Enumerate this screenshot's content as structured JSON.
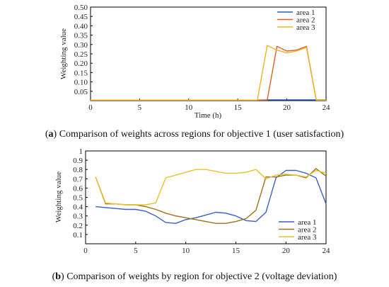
{
  "chart_data": [
    {
      "type": "line",
      "caption_letter": "a",
      "caption_text": "Comparison of weights across regions for objective 1 (user satisfaction)",
      "xlabel": "Time (h)",
      "ylabel": "Weighting value",
      "xlim": [
        0,
        24
      ],
      "ylim": [
        0,
        0.5
      ],
      "xticks": [
        0,
        5,
        10,
        15,
        20,
        24
      ],
      "yticks": [
        "0.05",
        "0.10",
        "0.15",
        "0.20",
        "0.25",
        "0.30",
        "0.35",
        "0.40",
        "0.45",
        "0.50"
      ],
      "legend_position": "top-right",
      "series": [
        {
          "name": "area 1",
          "color": "#1f5fbf",
          "x": [
            0,
            17,
            18,
            19,
            20,
            21,
            22,
            23,
            24
          ],
          "y": [
            0.003,
            0.003,
            0.004,
            0.004,
            0.004,
            0.004,
            0.004,
            0.004,
            0.004
          ]
        },
        {
          "name": "area 2",
          "color": "#e0602a",
          "x": [
            0,
            17,
            18,
            19,
            20,
            21,
            22,
            23,
            24
          ],
          "y": [
            0.003,
            0.003,
            0.003,
            0.29,
            0.265,
            0.27,
            0.29,
            0.003,
            0.003
          ]
        },
        {
          "name": "area 3",
          "color": "#f2b21d",
          "x": [
            0,
            17,
            18,
            19,
            20,
            21,
            22,
            23,
            24
          ],
          "y": [
            0.003,
            0.003,
            0.295,
            0.27,
            0.255,
            0.265,
            0.285,
            0.003,
            0.003
          ]
        }
      ]
    },
    {
      "type": "line",
      "caption_letter": "b",
      "caption_text": "Comparison of weights by region for objective 2 (voltage deviation)",
      "xlabel": "",
      "ylabel": "Weighting value",
      "xlim": [
        0,
        24
      ],
      "ylim": [
        0,
        1
      ],
      "xticks": [
        0,
        5,
        10,
        15,
        20,
        24
      ],
      "yticks": [
        "0.1",
        "0.2",
        "0.3",
        "0.4",
        "0.5",
        "0.6",
        "0.7",
        "0.8",
        "0.9",
        "1"
      ],
      "legend_position": "bottom-right",
      "series": [
        {
          "name": "area 1",
          "color": "#3a5fc8",
          "x": [
            1,
            2,
            3,
            4,
            5,
            6,
            7,
            8,
            9,
            10,
            11,
            12,
            13,
            14,
            15,
            16,
            17,
            18,
            19,
            20,
            21,
            22,
            23,
            24
          ],
          "y": [
            0.4,
            0.39,
            0.38,
            0.37,
            0.37,
            0.35,
            0.3,
            0.23,
            0.22,
            0.26,
            0.28,
            0.31,
            0.34,
            0.33,
            0.3,
            0.25,
            0.24,
            0.34,
            0.71,
            0.79,
            0.79,
            0.76,
            0.71,
            0.43
          ]
        },
        {
          "name": "area 2",
          "color": "#a0701a",
          "x": [
            1,
            2,
            3,
            4,
            5,
            6,
            7,
            8,
            9,
            10,
            11,
            12,
            13,
            14,
            15,
            16,
            17,
            18,
            19,
            20,
            21,
            22,
            23,
            24
          ],
          "y": [
            0.72,
            0.43,
            0.43,
            0.42,
            0.42,
            0.4,
            0.37,
            0.33,
            0.3,
            0.28,
            0.26,
            0.24,
            0.22,
            0.22,
            0.24,
            0.27,
            0.36,
            0.72,
            0.72,
            0.74,
            0.74,
            0.71,
            0.81,
            0.73
          ]
        },
        {
          "name": "area 3",
          "color": "#e8c22a",
          "x": [
            1,
            2,
            3,
            4,
            5,
            6,
            7,
            8,
            9,
            10,
            11,
            12,
            13,
            14,
            15,
            16,
            17,
            18,
            19,
            20,
            21,
            22,
            23,
            24
          ],
          "y": [
            0.72,
            0.44,
            0.43,
            0.42,
            0.42,
            0.42,
            0.44,
            0.71,
            0.74,
            0.77,
            0.8,
            0.8,
            0.78,
            0.76,
            0.76,
            0.77,
            0.8,
            0.7,
            0.74,
            0.75,
            0.74,
            0.72,
            0.79,
            0.76
          ]
        }
      ]
    }
  ]
}
